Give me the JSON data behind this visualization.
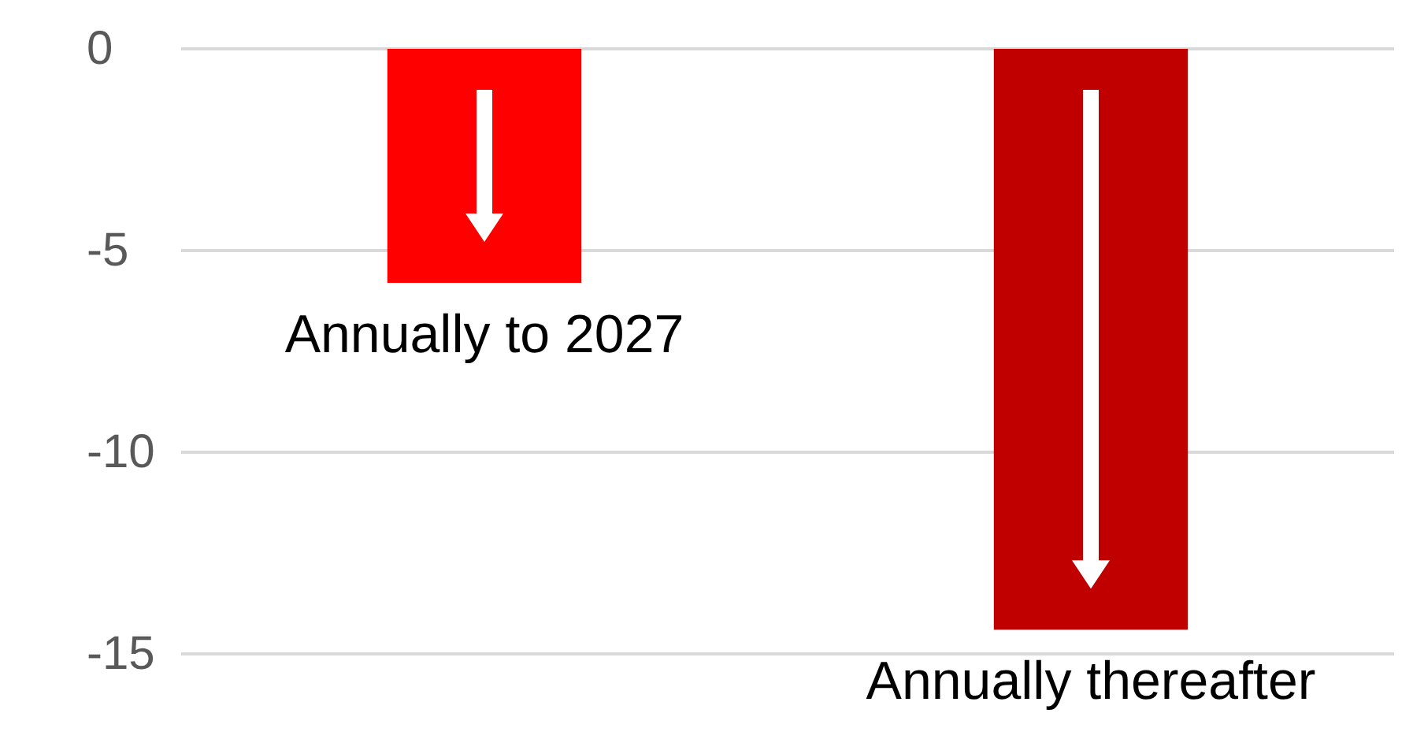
{
  "chart_data": {
    "type": "bar",
    "categories": [
      "Annually to 2027",
      "Annually thereafter"
    ],
    "values": [
      -5.8,
      -14.4
    ],
    "colors": [
      "#ff0000",
      "#c00000"
    ],
    "ylim": [
      -15,
      0
    ],
    "yticks": [
      -15,
      -10,
      -5,
      0
    ],
    "grid": "y"
  }
}
